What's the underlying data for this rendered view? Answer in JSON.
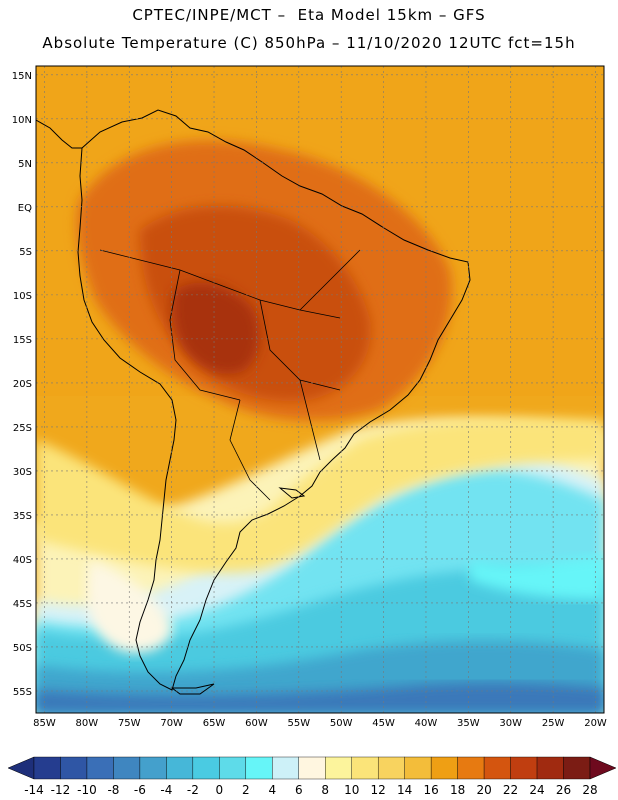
{
  "header": {
    "line1": "CPTEC/INPE/MCT –  Eta Model 15km – GFS",
    "line2": "Absolute Temperature (C) 850hPa – 11/10/2020 12UTC fct=15h"
  },
  "map": {
    "lat_labels": [
      "15N",
      "10N",
      "5N",
      "EQ",
      "5S",
      "10S",
      "15S",
      "20S",
      "25S",
      "30S",
      "35S",
      "40S",
      "45S",
      "50S",
      "55S"
    ],
    "lon_labels": [
      "85W",
      "80W",
      "75W",
      "70W",
      "65W",
      "60W",
      "55W",
      "50W",
      "45W",
      "40W",
      "35W",
      "30W",
      "25W",
      "20W"
    ],
    "lon_min": -86,
    "lon_max": -19,
    "lat_min": -57.5,
    "lat_max": 16,
    "grid": "dotted"
  },
  "colorbar": {
    "labels": [
      "-14",
      "-12",
      "-10",
      "-8",
      "-6",
      "-4",
      "-2",
      "0",
      "2",
      "4",
      "6",
      "8",
      "10",
      "12",
      "14",
      "16",
      "18",
      "20",
      "22",
      "24",
      "26",
      "28"
    ],
    "colors": [
      "#253d8f",
      "#2f56a5",
      "#3a6fb7",
      "#3f86c0",
      "#44a0cc",
      "#46b7d8",
      "#4acbe2",
      "#5edbe9",
      "#66f5f8",
      "#cdf1f8",
      "#fff6e0",
      "#fcf49c",
      "#fbe479",
      "#f8d35f",
      "#f3bd3a",
      "#ef9f14",
      "#e77a11",
      "#d4550f",
      "#c03e10",
      "#a02a10",
      "#7b1c14"
    ],
    "under_color": "#1e2f7a",
    "over_color": "#6e0a1e"
  }
}
